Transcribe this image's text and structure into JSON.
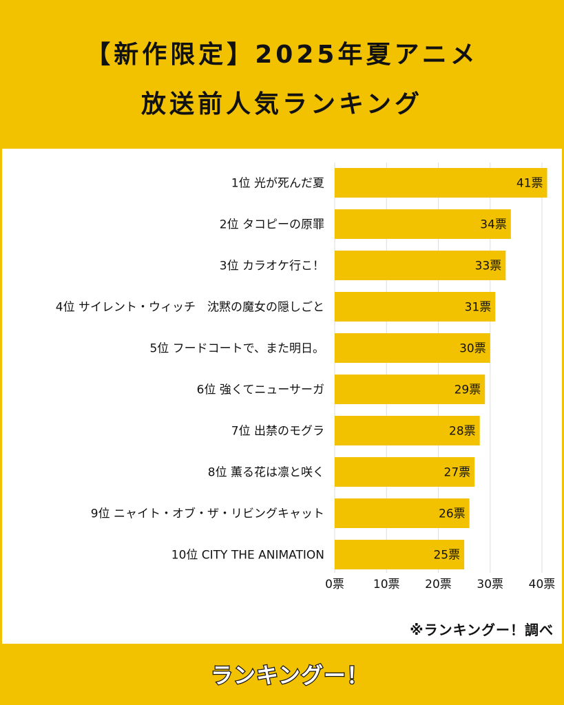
{
  "header": {
    "title_line1": "【新作限定】2025年夏アニメ",
    "title_line2": "放送前人気ランキング"
  },
  "footer": {
    "source_note": "※ランキングー！調べ",
    "logo_text": "ランキングー！"
  },
  "colors": {
    "background": "#F2C200",
    "bar": "#F2C200",
    "panel": "#FFFFFF",
    "grid": "#DDDDDD",
    "text": "#111111"
  },
  "chart_data": {
    "type": "bar",
    "orientation": "horizontal",
    "categories": [
      "1位 光が死んだ夏",
      "2位 タコピーの原罪",
      "3位 カラオケ行こ！",
      "4位 サイレント・ウィッチ　沈黙の魔女の隠しごと",
      "5位 フードコートで、また明日。",
      "6位 強くてニューサーガ",
      "7位 出禁のモグラ",
      "8位 薫る花は凛と咲く",
      "9位 ニャイト・オブ・ザ・リビングキャット",
      "10位 CITY THE ANIMATION"
    ],
    "values": [
      41,
      34,
      33,
      31,
      30,
      29,
      28,
      27,
      26,
      25
    ],
    "value_labels": [
      "41票",
      "34票",
      "33票",
      "31票",
      "30票",
      "29票",
      "28票",
      "27票",
      "26票",
      "25票"
    ],
    "xlim": [
      0,
      40
    ],
    "x_ticks": [
      0,
      10,
      20,
      30,
      40
    ],
    "x_tick_labels": [
      "0票",
      "10票",
      "20票",
      "30票",
      "40票"
    ],
    "grid": true
  }
}
